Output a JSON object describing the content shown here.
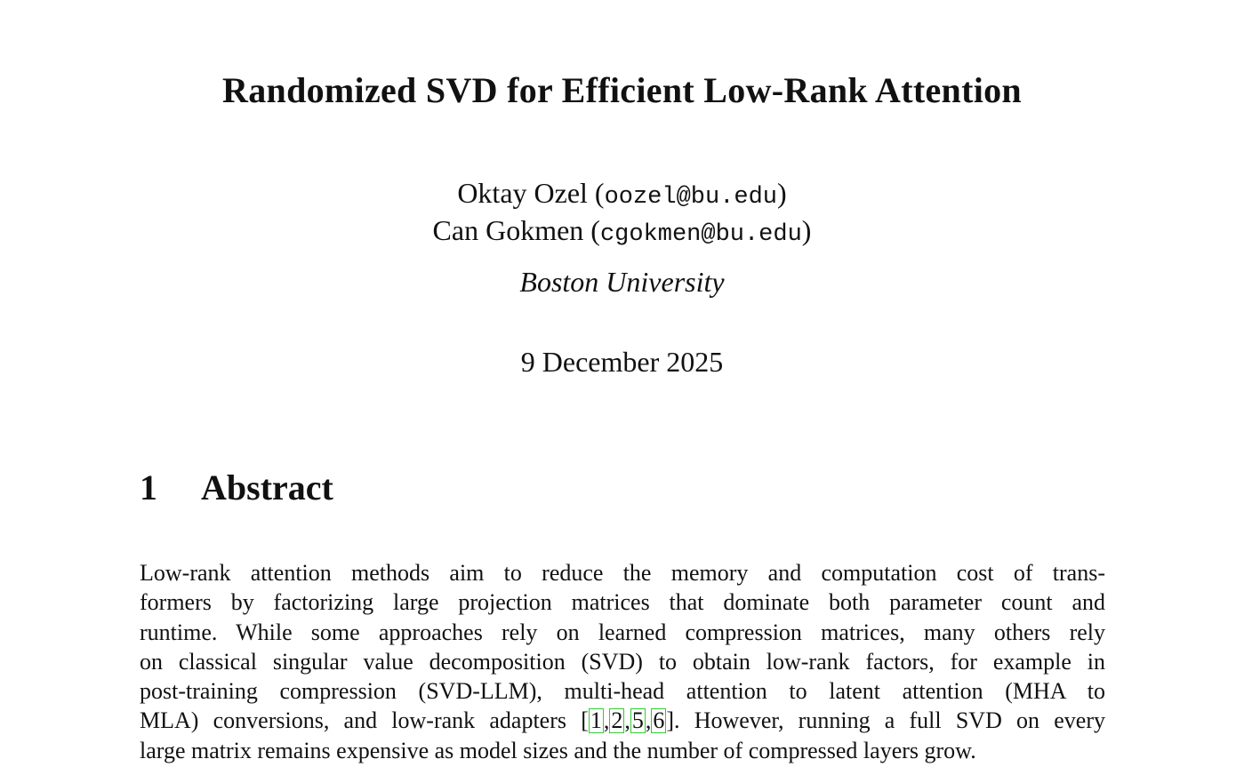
{
  "paper": {
    "title": "Randomized SVD for Efficient Low-Rank Attention",
    "authors": [
      {
        "name": "Oktay Ozel",
        "email": "oozel@bu.edu"
      },
      {
        "name": "Can Gokmen",
        "email": "cgokmen@bu.edu"
      }
    ],
    "affiliation": "Boston University",
    "date": "9 December 2025",
    "section": {
      "number": "1",
      "title": "Abstract"
    },
    "abstract_lines": [
      "Low-rank attention methods aim to reduce the memory and computation cost of trans-",
      "formers by factorizing large projection matrices that dominate both parameter count and",
      "runtime.  While some approaches rely on learned compression matrices, many others rely",
      "on classical singular value decomposition (SVD) to obtain low-rank factors, for example in",
      "post-training compression (SVD-LLM), multi-head attention to latent attention (MHA to",
      "large matrix remains expensive as model sizes and the number of compressed layers grow."
    ],
    "abstract_line6": {
      "before": "MLA) conversions, and low-rank adapters [",
      "citations": [
        "1",
        "2",
        "5",
        "6"
      ],
      "after": "].  However, running a full SVD on every"
    },
    "citation_box_color": "#33cc33"
  }
}
